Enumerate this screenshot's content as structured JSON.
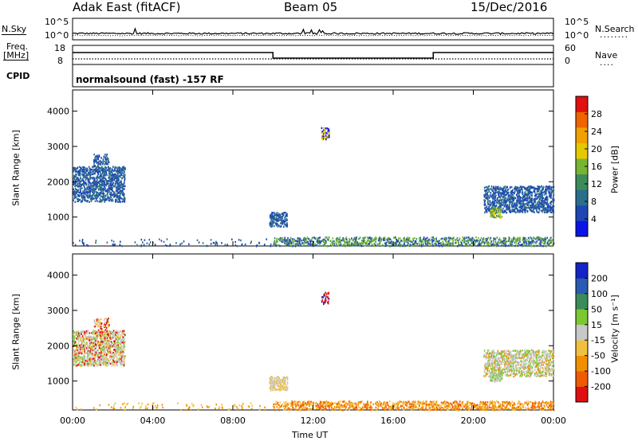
{
  "header": {
    "site": "Adak East (fitACF)",
    "beam": "Beam 05",
    "date": "15/Dec/2016"
  },
  "summary": {
    "nsky_label": "N.Sky",
    "nsky_ticks": [
      "10^5",
      "10^0"
    ],
    "nsearch_label": "N.Search",
    "nsearch_ticks": [
      "10^5",
      "10^0"
    ],
    "freq_label_top": "Freq.",
    "freq_label_unit": "[MHz]",
    "freq_ticks": [
      "18",
      "8"
    ],
    "nave_label": "Nave",
    "nave_ticks": [
      "60",
      "0"
    ],
    "cpid_label": "CPID",
    "cpid_text": "normalsound (fast) -157 RF"
  },
  "chart_data": [
    {
      "type": "heatmap",
      "panel": "power",
      "ylabel": "Slant Range [km]",
      "yticks": [
        1000,
        2000,
        3000,
        4000
      ],
      "ylim": [
        180,
        4600
      ],
      "xlim": [
        0,
        24
      ],
      "colorbar": {
        "label": "Power [dB]",
        "ticks": [
          "4",
          "8",
          "12",
          "16",
          "20",
          "24",
          "28"
        ],
        "range": [
          0,
          32
        ],
        "colors": [
          "#0a14e6",
          "#1e46b4",
          "#2a6e8c",
          "#3c8c5a",
          "#78b432",
          "#e6c800",
          "#f0a000",
          "#f06400",
          "#e01010"
        ]
      },
      "regions": [
        {
          "t": [
            0.0,
            2.6
          ],
          "r": [
            1450,
            2450
          ],
          "levels": [
            1,
            2
          ],
          "density": 0.5
        },
        {
          "t": [
            1.0,
            1.8
          ],
          "r": [
            2300,
            2800
          ],
          "levels": [
            1,
            2
          ],
          "density": 0.3
        },
        {
          "t": [
            9.8,
            10.7
          ],
          "r": [
            750,
            1150
          ],
          "levels": [
            1,
            2
          ],
          "density": 0.55
        },
        {
          "t": [
            12.4,
            12.8
          ],
          "r": [
            3200,
            3550
          ],
          "levels": [
            0,
            5
          ],
          "density": 0.4
        },
        {
          "t": [
            10.0,
            24.0
          ],
          "r": [
            200,
            450
          ],
          "levels": [
            1,
            3,
            4
          ],
          "density": 0.35
        },
        {
          "t": [
            0.0,
            10.0
          ],
          "r": [
            200,
            400
          ],
          "levels": [
            1,
            2
          ],
          "density": 0.06
        },
        {
          "t": [
            20.5,
            24.0
          ],
          "r": [
            1150,
            1900
          ],
          "levels": [
            1,
            2
          ],
          "density": 0.45
        },
        {
          "t": [
            20.8,
            21.4
          ],
          "r": [
            1000,
            1300
          ],
          "levels": [
            3,
            4,
            5
          ],
          "density": 0.5
        }
      ]
    },
    {
      "type": "heatmap",
      "panel": "velocity",
      "ylabel": "Slant Range [km]",
      "yticks": [
        1000,
        2000,
        3000,
        4000
      ],
      "ylim": [
        180,
        4600
      ],
      "xlim": [
        0,
        24
      ],
      "xlabel": "Time UT",
      "xticks": [
        "00:00",
        "04:00",
        "08:00",
        "12:00",
        "16:00",
        "20:00",
        "00:00"
      ],
      "colorbar": {
        "label": "Velocity [m s⁻¹]",
        "ticks": [
          "-200",
          "-100",
          "-50",
          "-15",
          "15",
          "50",
          "100",
          "200"
        ],
        "range": [
          -250,
          250
        ],
        "colors": [
          "#e01010",
          "#f05a00",
          "#f09000",
          "#f0c040",
          "#c8c8c8",
          "#7ac832",
          "#3c8c5a",
          "#2a5ab4",
          "#1423c8"
        ]
      },
      "regions": [
        {
          "t": [
            0.0,
            2.6
          ],
          "r": [
            1450,
            2450
          ],
          "levels": [
            4,
            4,
            3,
            5,
            0
          ],
          "density": 0.5
        },
        {
          "t": [
            1.0,
            1.8
          ],
          "r": [
            2300,
            2800
          ],
          "levels": [
            4,
            3,
            0
          ],
          "density": 0.3
        },
        {
          "t": [
            9.8,
            10.7
          ],
          "r": [
            750,
            1150
          ],
          "levels": [
            4,
            3
          ],
          "density": 0.55
        },
        {
          "t": [
            12.4,
            12.8
          ],
          "r": [
            3200,
            3550
          ],
          "levels": [
            0,
            8
          ],
          "density": 0.4
        },
        {
          "t": [
            10.0,
            24.0
          ],
          "r": [
            200,
            450
          ],
          "levels": [
            2,
            3,
            1
          ],
          "density": 0.35
        },
        {
          "t": [
            0.0,
            10.0
          ],
          "r": [
            200,
            400
          ],
          "levels": [
            3,
            2
          ],
          "density": 0.06
        },
        {
          "t": [
            20.5,
            24.0
          ],
          "r": [
            1150,
            1900
          ],
          "levels": [
            4,
            4,
            5,
            2
          ],
          "density": 0.45
        },
        {
          "t": [
            20.8,
            21.4
          ],
          "r": [
            1000,
            1300
          ],
          "levels": [
            4,
            5
          ],
          "density": 0.5
        }
      ]
    }
  ]
}
